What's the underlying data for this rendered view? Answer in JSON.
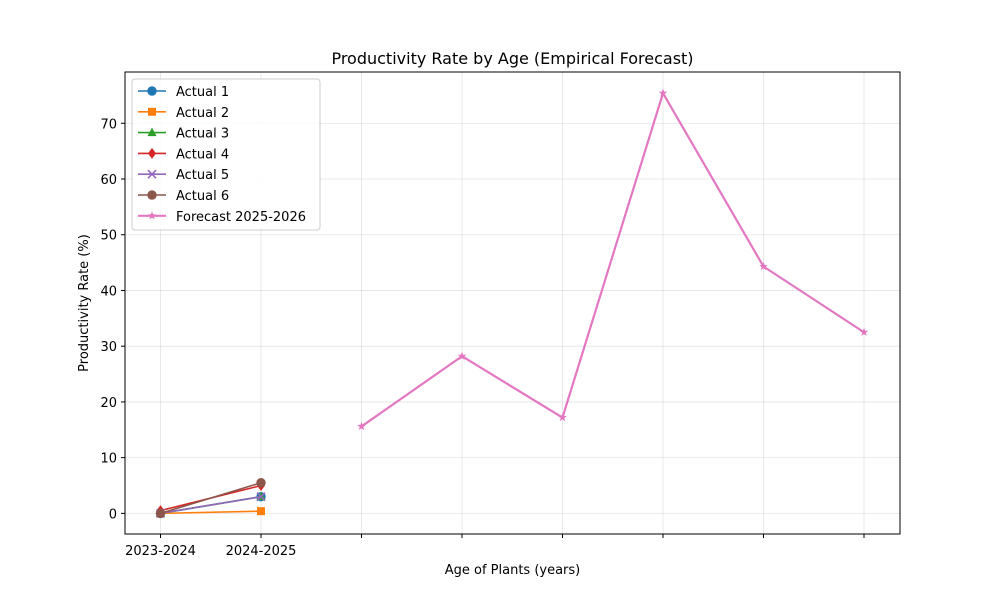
{
  "chart_data": {
    "type": "line",
    "title": "Productivity Rate by Age (Empirical Forecast)",
    "xlabel": "Age of Plants (years)",
    "ylabel": "Productivity Rate (%)",
    "x_categories": [
      "2023-2024",
      "2024-2025",
      "",
      "",
      "",
      "",
      "",
      ""
    ],
    "ylim": [
      -3.7,
      79.2
    ],
    "yticks": [
      0,
      10,
      20,
      30,
      40,
      50,
      60,
      70
    ],
    "grid": true,
    "legend_position": "top-left",
    "series": [
      {
        "name": "Actual 1",
        "color": "#1f77b4",
        "marker": "circle",
        "x": [
          0,
          1
        ],
        "values": [
          0.0,
          3.0
        ]
      },
      {
        "name": "Actual 2",
        "color": "#ff7f0e",
        "marker": "square",
        "x": [
          0,
          1
        ],
        "values": [
          0.0,
          0.4
        ]
      },
      {
        "name": "Actual 3",
        "color": "#2ca02c",
        "marker": "triangle",
        "x": [
          0,
          1
        ],
        "values": [
          0.0,
          3.0
        ]
      },
      {
        "name": "Actual 4",
        "color": "#d62728",
        "marker": "diamond",
        "x": [
          0,
          1
        ],
        "values": [
          0.5,
          5.0
        ]
      },
      {
        "name": "Actual 5",
        "color": "#9467bd",
        "marker": "x",
        "x": [
          0,
          1
        ],
        "values": [
          0.0,
          3.0
        ]
      },
      {
        "name": "Actual 6",
        "color": "#8c564b",
        "marker": "circle",
        "x": [
          0,
          1
        ],
        "values": [
          0.0,
          5.5
        ]
      },
      {
        "name": "Forecast 2025-2026",
        "color": "#e377c2",
        "marker": "star",
        "x": [
          2,
          3,
          4,
          5,
          6,
          7
        ],
        "values": [
          15.6,
          28.2,
          17.2,
          75.4,
          44.3,
          32.5
        ]
      }
    ]
  }
}
